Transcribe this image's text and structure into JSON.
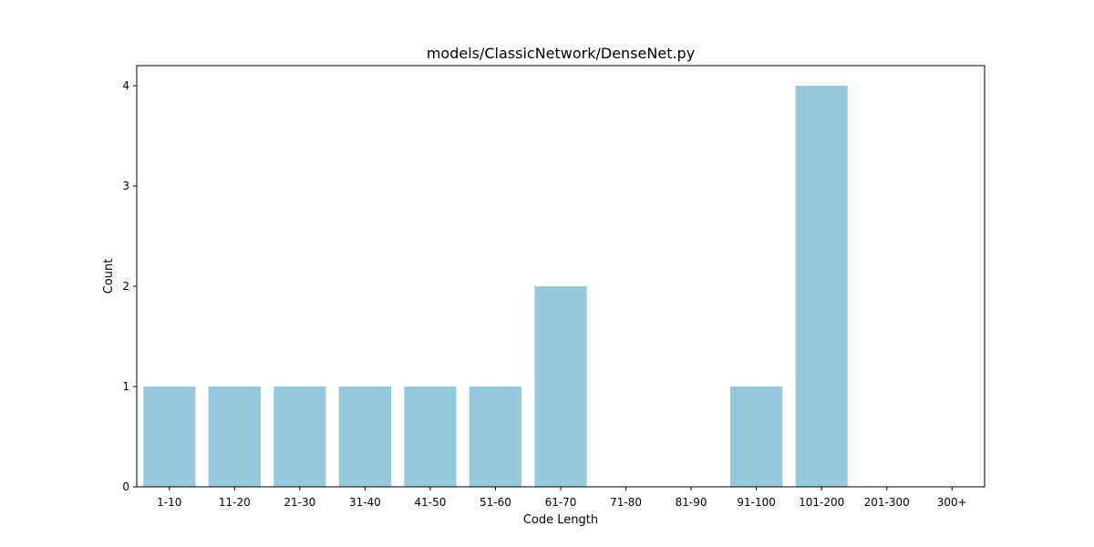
{
  "chart_data": {
    "type": "bar",
    "title": "models/ClassicNetwork/DenseNet.py",
    "xlabel": "Code Length",
    "ylabel": "Count",
    "categories": [
      "1-10",
      "11-20",
      "21-30",
      "31-40",
      "41-50",
      "51-60",
      "61-70",
      "71-80",
      "81-90",
      "91-100",
      "101-200",
      "201-300",
      "300+"
    ],
    "values": [
      1,
      1,
      1,
      1,
      1,
      1,
      2,
      0,
      0,
      1,
      4,
      0,
      0
    ],
    "yticks": [
      "0",
      "1",
      "2",
      "3",
      "4"
    ],
    "ylim": [
      0,
      4.2
    ],
    "grid": false,
    "legend": "none",
    "bar_color": "#95c9de"
  }
}
